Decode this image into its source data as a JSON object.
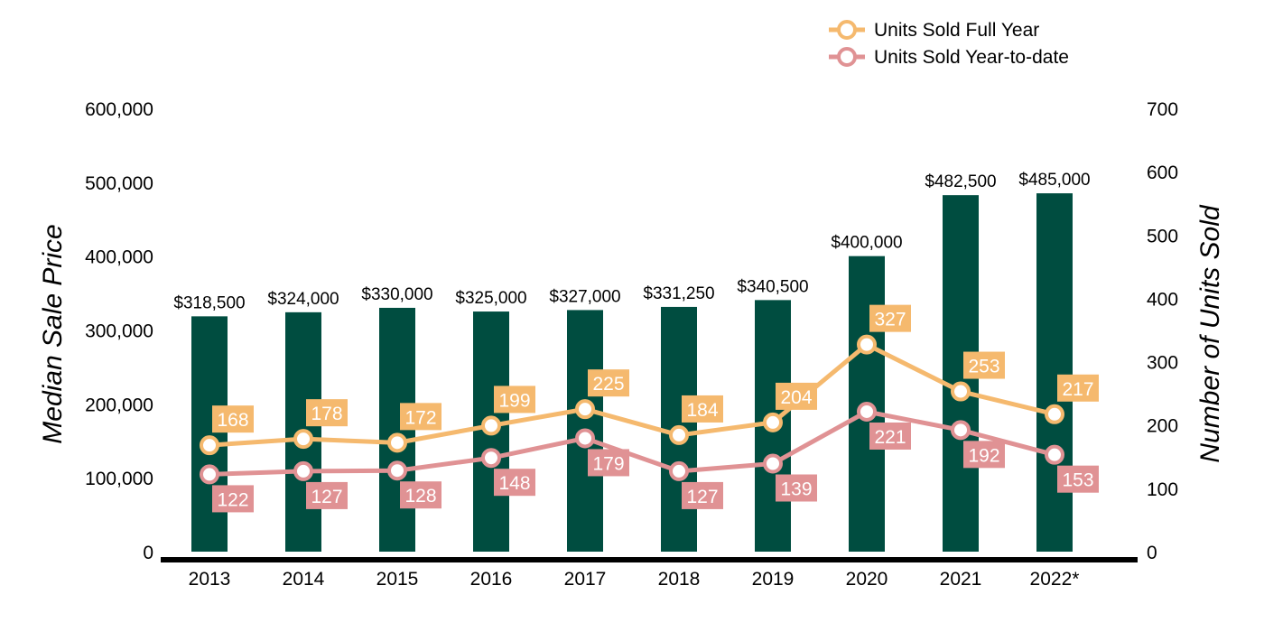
{
  "chart_data": {
    "type": "bar",
    "categories": [
      "2013",
      "2014",
      "2015",
      "2016",
      "2017",
      "2018",
      "2019",
      "2020",
      "2021",
      "2022*"
    ],
    "bars": {
      "name": "Median Sale Price",
      "values": [
        318500,
        324000,
        330000,
        325000,
        327000,
        331250,
        340500,
        400000,
        482500,
        485000
      ],
      "labels": [
        "$318,500",
        "$324,000",
        "$330,000",
        "$325,000",
        "$327,000",
        "$331,250",
        "$340,500",
        "$400,000",
        "$482,500",
        "$485,000"
      ],
      "color": "#004D40"
    },
    "series": [
      {
        "name": "Units Sold Full Year",
        "values": [
          168,
          178,
          172,
          199,
          225,
          184,
          204,
          327,
          253,
          217
        ],
        "color": "#F5B96E"
      },
      {
        "name": "Units Sold Year-to-date",
        "values": [
          122,
          127,
          128,
          148,
          179,
          127,
          139,
          221,
          192,
          153
        ],
        "color": "#E09294"
      }
    ],
    "ylabel": "Median Sale Price",
    "ylabel_right": "Number of Units Sold",
    "ylim": [
      0,
      600000
    ],
    "ylim_right": [
      0,
      700
    ],
    "y_ticks": [
      0,
      100000,
      200000,
      300000,
      400000,
      500000,
      600000
    ],
    "y_tick_labels": [
      "0",
      "100,000",
      "200,000",
      "300,000",
      "400,000",
      "500,000",
      "600,000"
    ],
    "y_right_ticks": [
      0,
      100,
      200,
      300,
      400,
      500,
      600,
      700
    ],
    "y_right_tick_labels": [
      "0",
      "100",
      "200",
      "300",
      "400",
      "500",
      "600",
      "700"
    ],
    "legend_position": "top-right",
    "grid": false
  }
}
